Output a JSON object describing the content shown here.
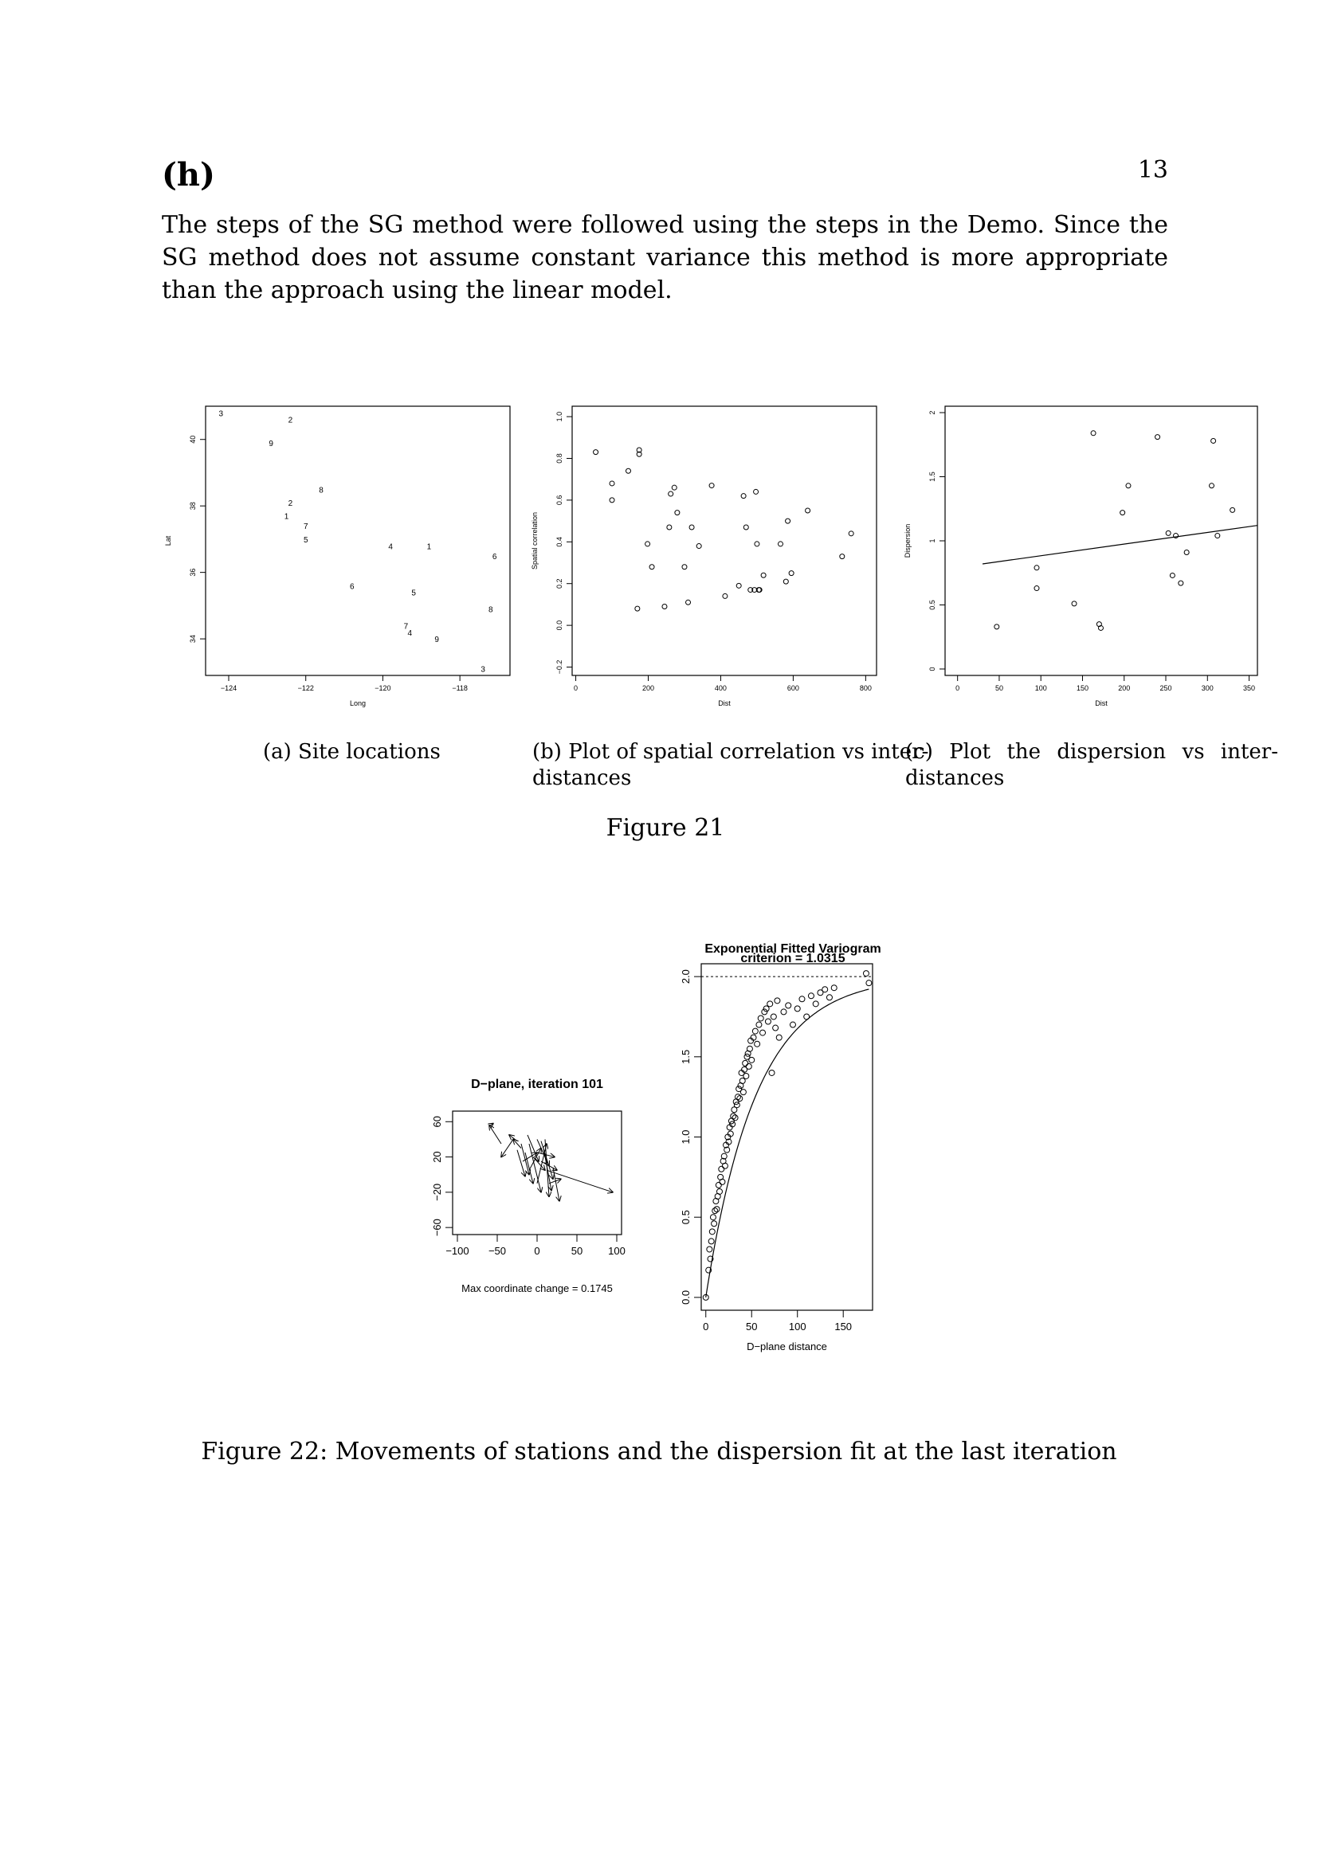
{
  "page": {
    "heading": "(h)",
    "number": "13",
    "intro": "The steps of the SG method were followed using the steps in the Demo. Since the SG method does not assume constant variance this method is more appropriate than the approach using the linear model."
  },
  "figure21": {
    "title": "Figure 21",
    "subcaptions": {
      "a": "(a) Site locations",
      "b_line1": "(b) Plot of spatial correlation vs inter-",
      "b_line2": "distances",
      "c_line1": "(c) Plot the dispersion vs inter-",
      "c_line2": "distances"
    }
  },
  "figure22": {
    "caption": "Figure 22: Movements of stations and the dispersion fit at the last iteration",
    "dplane_title": "D−plane, iteration 101",
    "dplane_note": "Max coordinate change = 0.1745",
    "vario_title": "Exponential Fitted Variogram",
    "vario_subtitle": "criterion = 1.0315"
  },
  "chart_data": [
    {
      "id": "site-locations",
      "type": "scatter",
      "xlabel": "Long",
      "ylabel": "Lat",
      "xlim": [
        -124.6,
        -116.7
      ],
      "ylim": [
        32.9,
        41.0
      ],
      "xticks": [
        -124,
        -122,
        -120,
        -118
      ],
      "xtick_labels": [
        "−124",
        "−122",
        "−120",
        "−118"
      ],
      "yticks": [
        34,
        36,
        38,
        40
      ],
      "yrotated": true,
      "marker": "label",
      "points": [
        {
          "x": -124.2,
          "y": 40.8,
          "label": "3"
        },
        {
          "x": -122.4,
          "y": 40.6,
          "label": "2"
        },
        {
          "x": -122.9,
          "y": 39.9,
          "label": "9"
        },
        {
          "x": -121.6,
          "y": 38.5,
          "label": "8"
        },
        {
          "x": -122.4,
          "y": 38.1,
          "label": "2"
        },
        {
          "x": -122.5,
          "y": 37.7,
          "label": "1"
        },
        {
          "x": -122.0,
          "y": 37.4,
          "label": "7"
        },
        {
          "x": -122.0,
          "y": 37.0,
          "label": "5"
        },
        {
          "x": -119.8,
          "y": 36.8,
          "label": "4"
        },
        {
          "x": -118.8,
          "y": 36.8,
          "label": "1"
        },
        {
          "x": -117.1,
          "y": 36.5,
          "label": "6"
        },
        {
          "x": -120.8,
          "y": 35.6,
          "label": "6"
        },
        {
          "x": -119.2,
          "y": 35.4,
          "label": "5"
        },
        {
          "x": -117.2,
          "y": 34.9,
          "label": "8"
        },
        {
          "x": -119.4,
          "y": 34.4,
          "label": "7"
        },
        {
          "x": -119.3,
          "y": 34.2,
          "label": "4"
        },
        {
          "x": -118.6,
          "y": 34.0,
          "label": "9"
        },
        {
          "x": -117.4,
          "y": 33.1,
          "label": "3"
        }
      ]
    },
    {
      "id": "spatial-correlation",
      "type": "scatter",
      "xlabel": "Dist",
      "ylabel": "Spatial correlation",
      "xlim": [
        -10,
        830
      ],
      "ylim": [
        -0.24,
        1.05
      ],
      "xticks": [
        0,
        200,
        400,
        600,
        800
      ],
      "xtick_labels": [
        "0",
        "200",
        "400",
        "600",
        "800"
      ],
      "yticks": [
        -0.2,
        0.0,
        0.2,
        0.4,
        0.6,
        0.8,
        1.0
      ],
      "ytick_labels": [
        "−0.2",
        "0.0",
        "0.2",
        "0.4",
        "0.6",
        "0.8",
        "1.0"
      ],
      "yrotated": true,
      "marker": "circle",
      "x": [
        55,
        100,
        100,
        145,
        170,
        175,
        175,
        198,
        210,
        245,
        258,
        262,
        272,
        280,
        300,
        310,
        320,
        340,
        375,
        412,
        450,
        463,
        470,
        482,
        493,
        497,
        500,
        505,
        507,
        518,
        565,
        580,
        585,
        595,
        640,
        735,
        760
      ],
      "y": [
        0.83,
        0.68,
        0.6,
        0.74,
        0.08,
        0.84,
        0.82,
        0.39,
        0.28,
        0.09,
        0.47,
        0.63,
        0.66,
        0.54,
        0.28,
        0.11,
        0.47,
        0.38,
        0.67,
        0.14,
        0.19,
        0.62,
        0.47,
        0.17,
        0.17,
        0.64,
        0.39,
        0.17,
        0.17,
        0.24,
        0.39,
        0.21,
        0.5,
        0.25,
        0.55,
        0.33,
        0.44
      ]
    },
    {
      "id": "dispersion",
      "type": "scatter",
      "xlabel": "Dist",
      "ylabel": "Dispersion",
      "xlim": [
        -15,
        360
      ],
      "ylim": [
        -0.05,
        2.05
      ],
      "xticks": [
        0,
        50,
        100,
        150,
        200,
        250,
        300,
        350
      ],
      "yticks": [
        0.0,
        0.5,
        1.0,
        1.5,
        2.0
      ],
      "yrotated": true,
      "marker": "circle",
      "x": [
        47,
        95,
        95,
        140,
        163,
        170,
        172,
        198,
        205,
        240,
        253,
        258,
        262,
        268,
        275,
        305,
        307,
        312,
        330
      ],
      "y": [
        0.33,
        0.79,
        0.63,
        0.51,
        1.84,
        0.35,
        0.32,
        1.22,
        1.43,
        1.81,
        1.06,
        0.73,
        1.04,
        0.67,
        0.91,
        1.43,
        1.78,
        1.04,
        1.24
      ],
      "fit_line": {
        "x": [
          30,
          360
        ],
        "y": [
          0.82,
          1.12
        ]
      }
    },
    {
      "id": "d-plane",
      "type": "line",
      "xlim": [
        -106,
        106
      ],
      "ylim": [
        -68,
        72
      ],
      "xticks": [
        -100,
        -50,
        0,
        50,
        100
      ],
      "xtick_labels": [
        "−100",
        "−50",
        "0",
        "50",
        "100"
      ],
      "yticks": [
        -60,
        -20,
        20,
        60
      ],
      "ytick_labels": [
        "−60",
        "−20",
        "20",
        "60"
      ],
      "yrotated": true,
      "marker": "arrow",
      "arrows": [
        [
          -60,
          55,
          -55,
          58
        ],
        [
          -45,
          35,
          -60,
          56
        ],
        [
          -30,
          40,
          -45,
          20
        ],
        [
          -25,
          38,
          -35,
          45
        ],
        [
          -20,
          30,
          -30,
          40
        ],
        [
          -15,
          25,
          -5,
          -10
        ],
        [
          -10,
          35,
          5,
          -20
        ],
        [
          0,
          40,
          15,
          10
        ],
        [
          5,
          38,
          20,
          -5
        ],
        [
          10,
          40,
          15,
          -25
        ],
        [
          12,
          5,
          95,
          -20
        ],
        [
          -18,
          15,
          0,
          25
        ],
        [
          -5,
          20,
          10,
          5
        ],
        [
          20,
          8,
          28,
          -30
        ],
        [
          15,
          -10,
          30,
          -5
        ],
        [
          -10,
          5,
          5,
          30
        ],
        [
          0,
          -10,
          12,
          35
        ],
        [
          -20,
          35,
          -10,
          0
        ],
        [
          5,
          15,
          25,
          5
        ],
        [
          -12,
          45,
          2,
          15
        ],
        [
          8,
          30,
          18,
          -18
        ],
        [
          -25,
          28,
          -15,
          -2
        ],
        [
          0,
          25,
          22,
          20
        ]
      ]
    },
    {
      "id": "variogram",
      "type": "scatter",
      "xlabel": "D−plane distance",
      "xlim": [
        -5,
        182
      ],
      "ylim": [
        -0.08,
        2.08
      ],
      "xticks": [
        0,
        50,
        100,
        150
      ],
      "yticks": [
        0.0,
        0.5,
        1.0,
        1.5,
        2.0
      ],
      "ytick_labels": [
        "0.0",
        "0.5",
        "1.0",
        "1.5",
        "2.0"
      ],
      "yrotated": true,
      "marker": "circle",
      "sill": 2.0,
      "curve": {
        "type": "exponential",
        "sill": 2.0,
        "range": 55,
        "xmax": 178
      },
      "points_generated": true,
      "x": [
        0,
        3,
        4,
        5,
        6,
        7,
        8,
        9,
        10,
        11,
        12,
        13,
        14,
        15,
        16,
        17,
        18,
        19,
        20,
        21,
        22,
        23,
        24,
        25,
        26,
        27,
        28,
        29,
        30,
        31,
        32,
        33,
        34,
        35,
        36,
        37,
        38,
        39,
        40,
        41,
        42,
        43,
        44,
        45,
        46,
        47,
        48,
        49,
        50,
        52,
        54,
        56,
        58,
        60,
        62,
        64,
        66,
        68,
        70,
        72,
        74,
        76,
        78,
        80,
        85,
        90,
        95,
        100,
        105,
        110,
        115,
        120,
        125,
        130,
        135,
        140,
        175,
        178
      ],
      "y": [
        0.0,
        0.17,
        0.3,
        0.24,
        0.35,
        0.41,
        0.5,
        0.46,
        0.54,
        0.6,
        0.55,
        0.63,
        0.7,
        0.66,
        0.75,
        0.8,
        0.72,
        0.85,
        0.88,
        0.82,
        0.95,
        0.92,
        1.0,
        0.97,
        1.06,
        1.02,
        1.1,
        1.08,
        1.13,
        1.17,
        1.12,
        1.22,
        1.2,
        1.25,
        1.3,
        1.24,
        1.32,
        1.4,
        1.35,
        1.28,
        1.42,
        1.46,
        1.38,
        1.5,
        1.52,
        1.44,
        1.55,
        1.6,
        1.48,
        1.62,
        1.66,
        1.58,
        1.7,
        1.74,
        1.65,
        1.78,
        1.8,
        1.72,
        1.83,
        1.4,
        1.75,
        1.68,
        1.85,
        1.62,
        1.78,
        1.82,
        1.7,
        1.8,
        1.86,
        1.75,
        1.88,
        1.83,
        1.9,
        1.92,
        1.87,
        1.93,
        2.02,
        1.96
      ]
    }
  ]
}
